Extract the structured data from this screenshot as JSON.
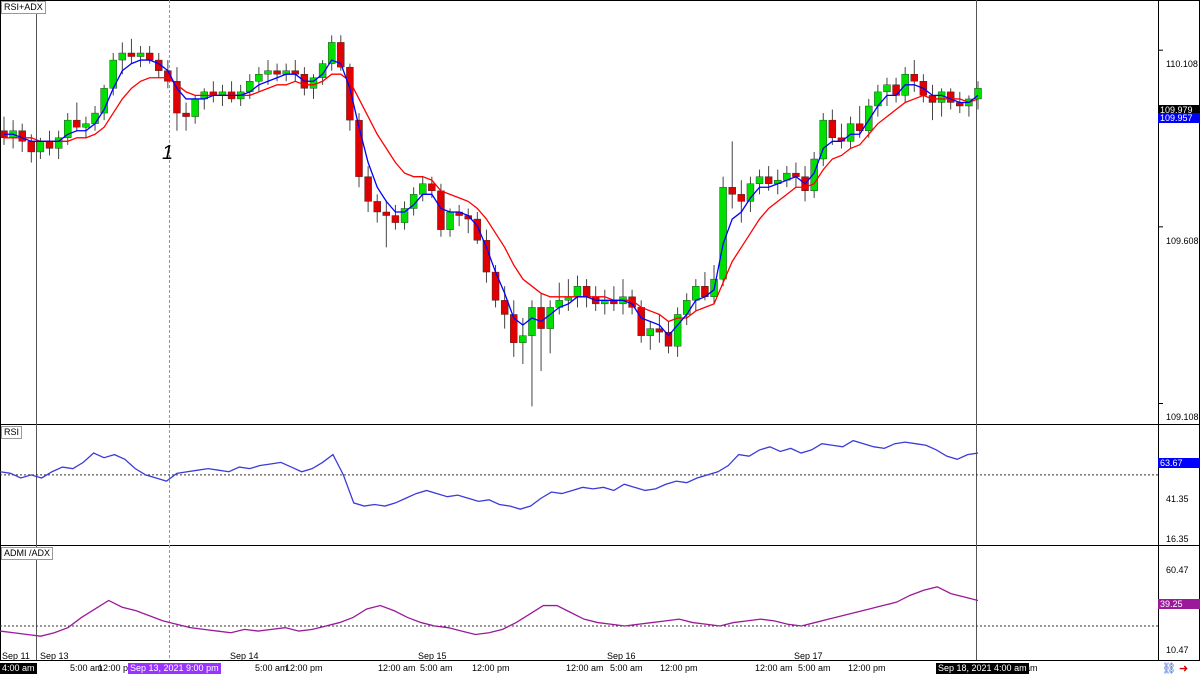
{
  "panes": {
    "price": {
      "title": "RSI+ADX",
      "ticks": [
        "110.108",
        "109.608",
        "109.108"
      ]
    },
    "rsi": {
      "title": "RSI",
      "ticks": [
        "41.35",
        "16.35"
      ],
      "last": "63.67"
    },
    "adx": {
      "title": "ADMI /ADX",
      "ticks": [
        "60.47",
        "10.47"
      ],
      "last": "39.25"
    }
  },
  "price_last": {
    "bid": "109.979",
    "ask": "109.957"
  },
  "annotation": "1",
  "x_axis": {
    "labels": [
      "Sep 11",
      "Sep 13",
      "5:00 am",
      "12:00 pm",
      "Sep 14",
      "5:00 am",
      "12:00 pm",
      "12:00 am",
      "5:00 am",
      "Sep 15",
      "12:00 pm",
      "12:00 am",
      "5:00 am",
      "Sep 16",
      "12:00 pm",
      "12:00 am",
      "5:00 am",
      "Sep 17",
      "12:00 pm",
      "12:00 am"
    ],
    "cursor_left": "4:00 am",
    "cursor_marker": "Sep 13, 2021 9:00 pm",
    "cursor_right": "Sep 18, 2021 4:00 am"
  },
  "colors": {
    "bull": "#00e000",
    "bear": "#e00000",
    "ema_fast": "#0000ff",
    "ema_slow": "#ff0000",
    "rsi": "#3b3bdc",
    "adx": "#9a1a9a",
    "marker_line": "#cc66ff"
  },
  "chart_data": [
    {
      "type": "candlestick",
      "title": "RSI+ADX",
      "ylim": [
        109.05,
        110.25
      ],
      "y_ticks": [
        110.108,
        109.608,
        109.108
      ],
      "candles": [
        [
          109.88,
          109.92,
          109.84,
          109.86
        ],
        [
          109.86,
          109.91,
          109.83,
          109.88
        ],
        [
          109.88,
          109.9,
          109.82,
          109.85
        ],
        [
          109.85,
          109.87,
          109.79,
          109.82
        ],
        [
          109.82,
          109.86,
          109.8,
          109.85
        ],
        [
          109.85,
          109.88,
          109.81,
          109.83
        ],
        [
          109.83,
          109.88,
          109.8,
          109.86
        ],
        [
          109.86,
          109.93,
          109.84,
          109.91
        ],
        [
          109.91,
          109.96,
          109.88,
          109.89
        ],
        [
          109.89,
          109.92,
          109.86,
          109.9
        ],
        [
          109.9,
          109.95,
          109.88,
          109.93
        ],
        [
          109.93,
          110.01,
          109.91,
          110.0
        ],
        [
          110.0,
          110.1,
          109.98,
          110.08
        ],
        [
          110.08,
          110.13,
          110.04,
          110.1
        ],
        [
          110.1,
          110.14,
          110.07,
          110.09
        ],
        [
          110.09,
          110.12,
          110.06,
          110.1
        ],
        [
          110.1,
          110.12,
          110.07,
          110.08
        ],
        [
          110.08,
          110.1,
          110.03,
          110.05
        ],
        [
          110.05,
          110.08,
          110.0,
          110.02
        ],
        [
          110.02,
          110.06,
          109.88,
          109.93
        ],
        [
          109.93,
          109.96,
          109.88,
          109.92
        ],
        [
          109.92,
          109.98,
          109.9,
          109.97
        ],
        [
          109.97,
          110.0,
          109.94,
          109.99
        ],
        [
          109.99,
          110.02,
          109.96,
          109.98
        ],
        [
          109.98,
          110.01,
          109.95,
          109.99
        ],
        [
          109.99,
          110.02,
          109.96,
          109.97
        ],
        [
          109.97,
          110.01,
          109.95,
          109.99
        ],
        [
          109.99,
          110.04,
          109.97,
          110.02
        ],
        [
          110.02,
          110.06,
          109.99,
          110.04
        ],
        [
          110.04,
          110.08,
          110.01,
          110.05
        ],
        [
          110.05,
          110.07,
          110.02,
          110.04
        ],
        [
          110.04,
          110.07,
          110.02,
          110.05
        ],
        [
          110.05,
          110.08,
          110.02,
          110.04
        ],
        [
          110.04,
          110.06,
          109.98,
          110.0
        ],
        [
          110.0,
          110.04,
          109.97,
          110.03
        ],
        [
          110.03,
          110.08,
          110.01,
          110.07
        ],
        [
          110.07,
          110.15,
          110.05,
          110.13
        ],
        [
          110.13,
          110.15,
          110.05,
          110.06
        ],
        [
          110.06,
          110.07,
          109.88,
          109.91
        ],
        [
          109.91,
          109.93,
          109.72,
          109.75
        ],
        [
          109.75,
          109.78,
          109.65,
          109.68
        ],
        [
          109.68,
          109.7,
          109.62,
          109.65
        ],
        [
          109.65,
          109.68,
          109.55,
          109.64
        ],
        [
          109.64,
          109.67,
          109.6,
          109.62
        ],
        [
          109.62,
          109.68,
          109.6,
          109.66
        ],
        [
          109.66,
          109.72,
          109.64,
          109.7
        ],
        [
          109.7,
          109.75,
          109.68,
          109.73
        ],
        [
          109.73,
          109.75,
          109.69,
          109.71
        ],
        [
          109.71,
          109.73,
          109.58,
          109.6
        ],
        [
          109.6,
          109.66,
          109.58,
          109.65
        ],
        [
          109.65,
          109.67,
          109.61,
          109.64
        ],
        [
          109.64,
          109.66,
          109.59,
          109.63
        ],
        [
          109.63,
          109.65,
          109.56,
          109.57
        ],
        [
          109.57,
          109.6,
          109.45,
          109.48
        ],
        [
          109.48,
          109.5,
          109.38,
          109.4
        ],
        [
          109.4,
          109.44,
          109.32,
          109.36
        ],
        [
          109.36,
          109.4,
          109.24,
          109.28
        ],
        [
          109.28,
          109.35,
          109.22,
          109.3
        ],
        [
          109.3,
          109.4,
          109.1,
          109.38
        ],
        [
          109.38,
          109.42,
          109.2,
          109.32
        ],
        [
          109.32,
          109.4,
          109.25,
          109.38
        ],
        [
          109.38,
          109.45,
          109.36,
          109.4
        ],
        [
          109.4,
          109.46,
          109.37,
          109.41
        ],
        [
          109.41,
          109.47,
          109.38,
          109.44
        ],
        [
          109.44,
          109.46,
          109.38,
          109.41
        ],
        [
          109.41,
          109.44,
          109.37,
          109.39
        ],
        [
          109.39,
          109.43,
          109.36,
          109.4
        ],
        [
          109.4,
          109.44,
          109.37,
          109.39
        ],
        [
          109.39,
          109.46,
          109.36,
          109.41
        ],
        [
          109.41,
          109.43,
          109.36,
          109.38
        ],
        [
          109.38,
          109.4,
          109.28,
          109.3
        ],
        [
          109.3,
          109.34,
          109.26,
          109.32
        ],
        [
          109.32,
          109.36,
          109.28,
          109.31
        ],
        [
          109.31,
          109.34,
          109.25,
          109.27
        ],
        [
          109.27,
          109.38,
          109.24,
          109.36
        ],
        [
          109.36,
          109.42,
          109.33,
          109.4
        ],
        [
          109.4,
          109.46,
          109.37,
          109.44
        ],
        [
          109.44,
          109.48,
          109.4,
          109.41
        ],
        [
          109.41,
          109.5,
          109.39,
          109.46
        ],
        [
          109.46,
          109.75,
          109.44,
          109.72
        ],
        [
          109.72,
          109.85,
          109.66,
          109.7
        ],
        [
          109.7,
          109.74,
          109.62,
          109.68
        ],
        [
          109.68,
          109.75,
          109.65,
          109.73
        ],
        [
          109.73,
          109.77,
          109.7,
          109.75
        ],
        [
          109.75,
          109.78,
          109.71,
          109.73
        ],
        [
          109.73,
          109.77,
          109.7,
          109.74
        ],
        [
          109.74,
          109.78,
          109.72,
          109.76
        ],
        [
          109.76,
          109.79,
          109.72,
          109.75
        ],
        [
          109.75,
          109.78,
          109.68,
          109.71
        ],
        [
          109.71,
          109.82,
          109.69,
          109.8
        ],
        [
          109.8,
          109.93,
          109.78,
          109.91
        ],
        [
          109.91,
          109.94,
          109.84,
          109.86
        ],
        [
          109.86,
          109.9,
          109.83,
          109.85
        ],
        [
          109.85,
          109.92,
          109.83,
          109.9
        ],
        [
          109.9,
          109.95,
          109.86,
          109.88
        ],
        [
          109.88,
          109.97,
          109.86,
          109.95
        ],
        [
          109.95,
          110.01,
          109.92,
          109.99
        ],
        [
          109.99,
          110.03,
          109.95,
          110.01
        ],
        [
          110.01,
          110.03,
          109.96,
          109.98
        ],
        [
          109.98,
          110.06,
          109.96,
          110.04
        ],
        [
          110.04,
          110.08,
          109.99,
          110.02
        ],
        [
          110.02,
          110.04,
          109.96,
          109.98
        ],
        [
          109.98,
          110.01,
          109.91,
          109.96
        ],
        [
          109.96,
          110.0,
          109.92,
          109.99
        ],
        [
          109.99,
          110.0,
          109.94,
          109.96
        ],
        [
          109.96,
          109.99,
          109.93,
          109.95
        ],
        [
          109.95,
          109.98,
          109.92,
          109.97
        ],
        [
          109.97,
          110.02,
          109.94,
          110.0
        ]
      ],
      "series": [
        {
          "values": [
            109.87,
            109.87,
            109.86,
            109.85,
            109.85,
            109.85,
            109.85,
            109.87,
            109.88,
            109.88,
            109.9,
            109.94,
            110.0,
            110.05,
            110.07,
            110.08,
            110.08,
            110.07,
            110.05,
            110.0,
            109.97,
            109.97,
            109.97,
            109.98,
            109.98,
            109.98,
            109.98,
            109.99,
            110.01,
            110.02,
            110.03,
            110.04,
            110.04,
            110.02,
            110.02,
            110.04,
            110.08,
            110.07,
            110.0,
            109.89,
            109.79,
            109.72,
            109.68,
            109.65,
            109.65,
            109.67,
            109.7,
            109.7,
            109.66,
            109.65,
            109.65,
            109.64,
            109.61,
            109.55,
            109.48,
            109.42,
            109.35,
            109.33,
            109.35,
            109.34,
            109.36,
            109.38,
            109.39,
            109.41,
            109.41,
            109.4,
            109.4,
            109.4,
            109.4,
            109.39,
            109.35,
            109.34,
            109.33,
            109.3,
            109.33,
            109.36,
            109.4,
            109.41,
            109.43,
            109.56,
            109.63,
            109.65,
            109.69,
            109.72,
            109.72,
            109.73,
            109.74,
            109.75,
            109.73,
            109.76,
            109.83,
            109.85,
            109.85,
            109.87,
            109.87,
            109.91,
            109.95,
            109.98,
            109.98,
            110.01,
            110.01,
            110.0,
            109.98,
            109.98,
            109.97,
            109.96,
            109.96,
            109.98
          ]
        },
        {
          "values": [
            109.86,
            109.86,
            109.86,
            109.86,
            109.85,
            109.85,
            109.85,
            109.85,
            109.86,
            109.86,
            109.87,
            109.89,
            109.93,
            109.97,
            110.0,
            110.02,
            110.03,
            110.03,
            110.03,
            110.01,
            109.99,
            109.98,
            109.98,
            109.98,
            109.98,
            109.98,
            109.98,
            109.98,
            109.99,
            110.0,
            110.01,
            110.01,
            110.02,
            110.01,
            110.01,
            110.02,
            110.04,
            110.04,
            110.02,
            109.97,
            109.92,
            109.87,
            109.83,
            109.79,
            109.76,
            109.75,
            109.75,
            109.74,
            109.71,
            109.7,
            109.69,
            109.68,
            109.66,
            109.63,
            109.59,
            109.55,
            109.5,
            109.46,
            109.44,
            109.42,
            109.41,
            109.41,
            109.41,
            109.41,
            109.41,
            109.41,
            109.41,
            109.4,
            109.4,
            109.4,
            109.38,
            109.37,
            109.36,
            109.34,
            109.35,
            109.35,
            109.37,
            109.38,
            109.39,
            109.45,
            109.51,
            109.55,
            109.59,
            109.63,
            109.66,
            109.68,
            109.7,
            109.72,
            109.72,
            109.73,
            109.77,
            109.8,
            109.81,
            109.83,
            109.84,
            109.87,
            109.9,
            109.92,
            109.94,
            109.96,
            109.97,
            109.98,
            109.97,
            109.97,
            109.97,
            109.97,
            109.96,
            109.97
          ]
        }
      ]
    },
    {
      "type": "line",
      "title": "RSI",
      "ylim": [
        5,
        82
      ],
      "y_ticks": [
        41.35,
        16.35
      ],
      "reference_line": 50,
      "values": [
        52,
        51,
        48,
        50,
        48,
        52,
        55,
        54,
        58,
        64,
        61,
        63,
        60,
        54,
        50,
        48,
        46,
        51,
        52,
        53,
        54,
        53,
        52,
        55,
        54,
        56,
        57,
        58,
        55,
        52,
        54,
        58,
        63,
        50,
        32,
        30,
        31,
        30,
        32,
        35,
        38,
        40,
        38,
        36,
        37,
        35,
        33,
        34,
        31,
        30,
        28,
        30,
        35,
        39,
        38,
        40,
        42,
        41,
        42,
        40,
        44,
        42,
        40,
        41,
        44,
        46,
        45,
        48,
        50,
        52,
        56,
        63,
        62,
        66,
        68,
        65,
        67,
        64,
        66,
        70,
        69,
        68,
        72,
        70,
        68,
        67,
        70,
        71,
        70,
        69,
        66,
        62,
        60,
        63,
        64
      ]
    },
    {
      "type": "line",
      "title": "ADMI /ADX",
      "ylim": [
        5,
        72
      ],
      "y_ticks": [
        60.47,
        10.47
      ],
      "reference_line": 25,
      "values": [
        22,
        21,
        20,
        19,
        21,
        24,
        30,
        35,
        40,
        36,
        34,
        31,
        28,
        26,
        24,
        23,
        22,
        21,
        23,
        22,
        23,
        24,
        22,
        23,
        25,
        27,
        30,
        35,
        37,
        34,
        30,
        27,
        25,
        24,
        22,
        20,
        21,
        23,
        27,
        32,
        37,
        37,
        33,
        29,
        27,
        26,
        25,
        26,
        27,
        28,
        29,
        27,
        26,
        25,
        27,
        28,
        29,
        28,
        26,
        25,
        27,
        29,
        31,
        33,
        35,
        37,
        39,
        43,
        46,
        48,
        44,
        42,
        40
      ]
    }
  ]
}
